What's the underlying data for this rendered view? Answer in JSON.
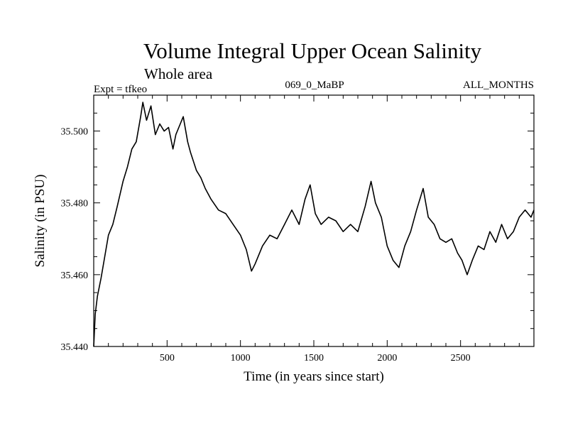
{
  "chart_data": {
    "type": "line",
    "title": "Volume Integral Upper Ocean Salinity",
    "subtitle": "Whole area",
    "annotations": {
      "left": "Expt = tfkeo",
      "center": "069_0_MaBP",
      "right": "ALL_MONTHS"
    },
    "xlabel": "Time (in years since start)",
    "ylabel": "Salinity (in PSU)",
    "xlim": [
      0,
      3000
    ],
    "ylim": [
      35.44,
      35.51
    ],
    "xticks": [
      500,
      1000,
      1500,
      2000,
      2500
    ],
    "xtick_labels": [
      "500",
      "1000",
      "1500",
      "2000",
      "2500"
    ],
    "yticks": [
      35.44,
      35.46,
      35.48,
      35.5
    ],
    "ytick_labels": [
      "35.440",
      "35.460",
      "35.480",
      "35.500"
    ],
    "grid": false,
    "series": [
      {
        "color": "#000000",
        "x": [
          0,
          10,
          25,
          50,
          75,
          100,
          130,
          160,
          200,
          230,
          260,
          290,
          320,
          335,
          360,
          390,
          420,
          450,
          480,
          510,
          540,
          560,
          590,
          610,
          640,
          660,
          700,
          730,
          760,
          800,
          850,
          900,
          950,
          1000,
          1040,
          1075,
          1100,
          1150,
          1200,
          1250,
          1300,
          1350,
          1400,
          1440,
          1475,
          1510,
          1550,
          1600,
          1650,
          1700,
          1750,
          1800,
          1850,
          1890,
          1920,
          1960,
          2000,
          2040,
          2080,
          2120,
          2160,
          2200,
          2245,
          2280,
          2320,
          2360,
          2400,
          2440,
          2480,
          2510,
          2545,
          2580,
          2620,
          2660,
          2700,
          2740,
          2780,
          2820,
          2860,
          2900,
          2940,
          2980,
          3000
        ],
        "y": [
          35.44,
          35.449,
          35.454,
          35.459,
          35.465,
          35.471,
          35.474,
          35.479,
          35.486,
          35.49,
          35.495,
          35.497,
          35.504,
          35.508,
          35.503,
          35.507,
          35.499,
          35.502,
          35.5,
          35.501,
          35.495,
          35.499,
          35.502,
          35.504,
          35.497,
          35.494,
          35.489,
          35.487,
          35.484,
          35.481,
          35.478,
          35.477,
          35.474,
          35.471,
          35.467,
          35.461,
          35.463,
          35.468,
          35.471,
          35.47,
          35.474,
          35.478,
          35.474,
          35.481,
          35.485,
          35.477,
          35.474,
          35.476,
          35.475,
          35.472,
          35.474,
          35.472,
          35.479,
          35.486,
          35.48,
          35.476,
          35.468,
          35.464,
          35.462,
          35.468,
          35.472,
          35.478,
          35.484,
          35.476,
          35.474,
          35.47,
          35.469,
          35.47,
          35.466,
          35.464,
          35.46,
          35.464,
          35.468,
          35.467,
          35.472,
          35.469,
          35.474,
          35.47,
          35.472,
          35.476,
          35.478,
          35.476,
          35.478
        ]
      }
    ]
  }
}
